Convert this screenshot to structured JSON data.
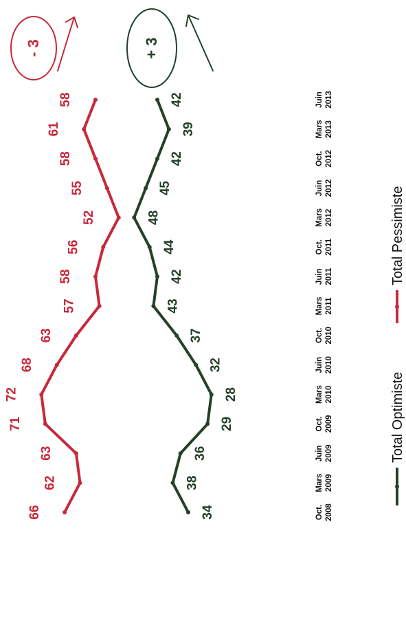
{
  "chart_data": {
    "type": "line",
    "categories": [
      "Oct. 2008",
      "Mars 2009",
      "Juin 2009",
      "Oct. 2009",
      "Mars 2010",
      "Juin 2010",
      "Oct. 2010",
      "Mars 2011",
      "Juin 2011",
      "Oct. 2011",
      "Mars 2012",
      "Juin 2012",
      "Oct. 2012",
      "Mars 2013",
      "Juin 2013"
    ],
    "series": [
      {
        "name": "Total Optimiste",
        "color": "#24402a",
        "values": [
          34,
          38,
          36,
          29,
          28,
          32,
          37,
          43,
          42,
          44,
          48,
          45,
          42,
          39,
          42
        ]
      },
      {
        "name": "Total Pessimiste",
        "color": "#c8283a",
        "values": [
          66,
          62,
          63,
          71,
          72,
          68,
          63,
          57,
          58,
          56,
          52,
          55,
          58,
          61,
          58
        ]
      }
    ],
    "annotations": [
      {
        "series": "Total Pessimiste",
        "text": "- 3",
        "color": "#c8283a"
      },
      {
        "series": "Total Optimiste",
        "text": "+ 3",
        "color": "#24402a"
      }
    ],
    "legend": "bottom",
    "grid": false,
    "orientation": "rotated-90-clockwise"
  }
}
